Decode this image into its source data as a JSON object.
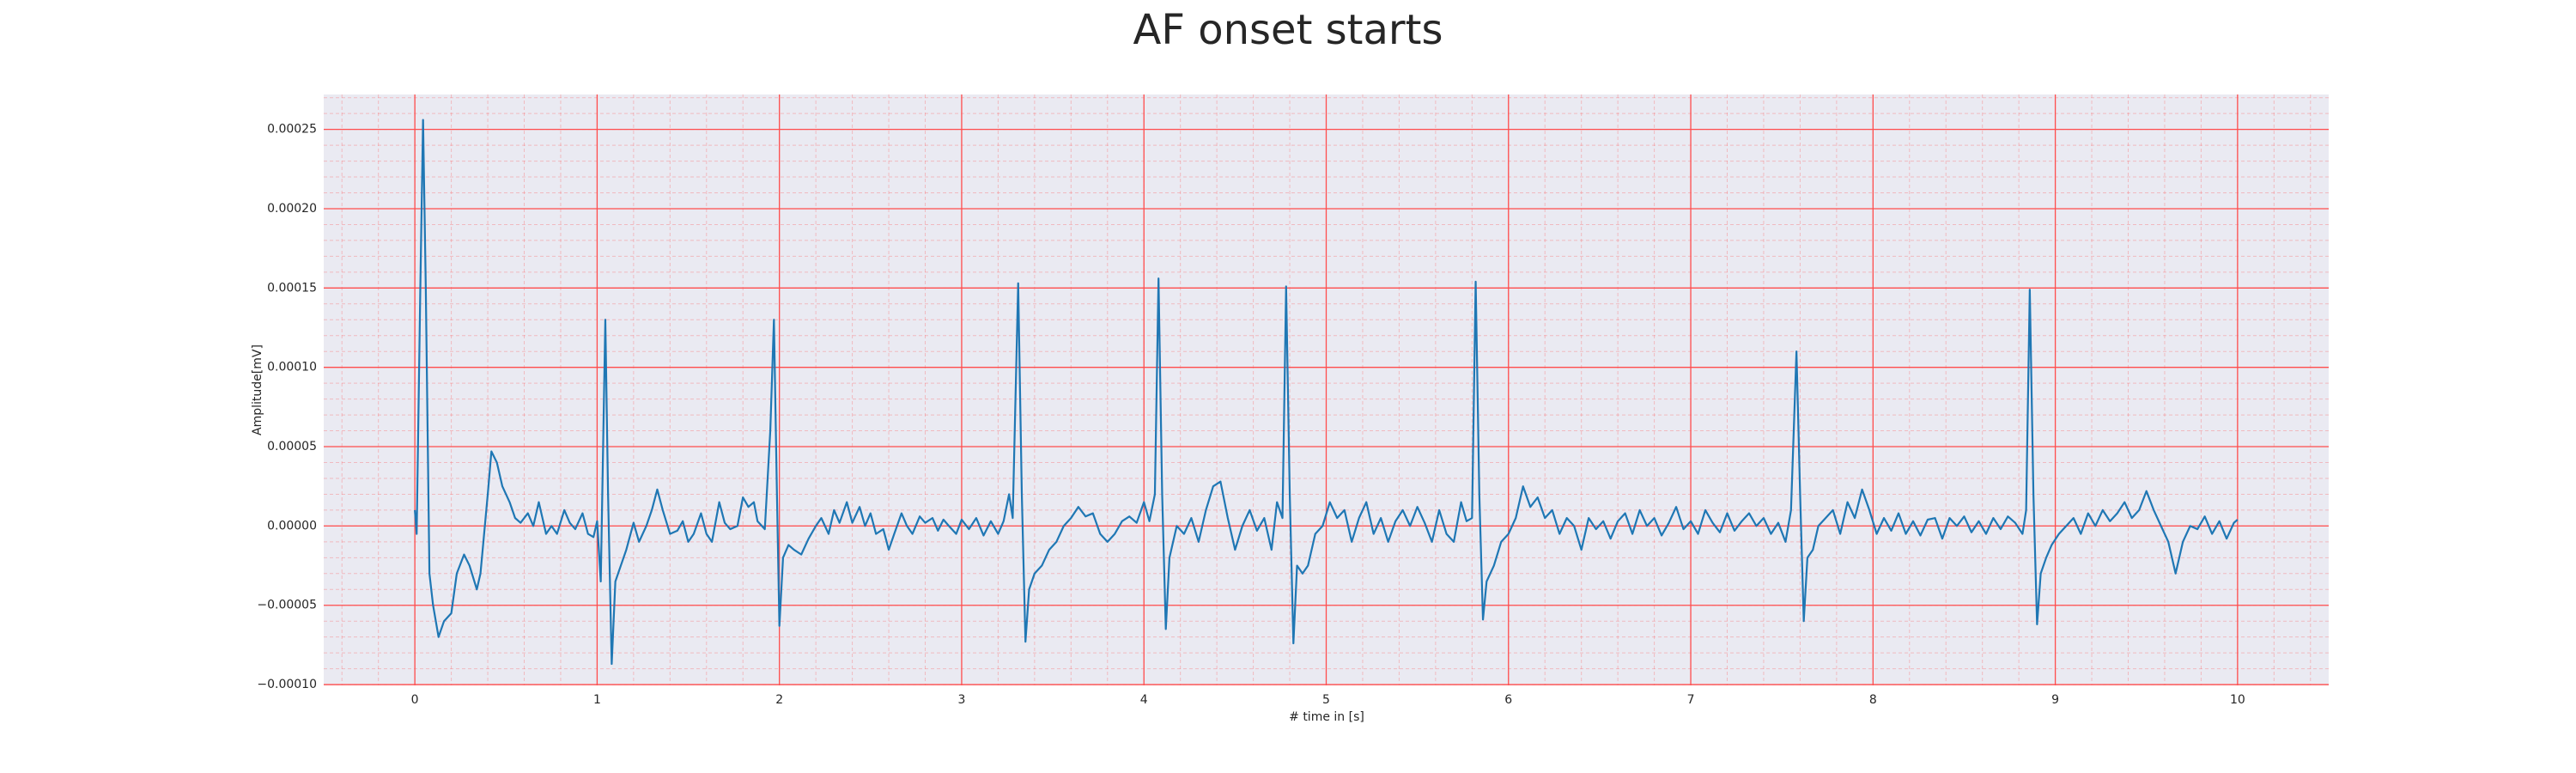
{
  "chart_data": {
    "type": "line",
    "title": "AF onset starts",
    "x_label": "# time in [s]",
    "y_label": "Amplitude[mV]",
    "xlim": [
      -0.5,
      10.5
    ],
    "ylim": [
      -0.0001005,
      0.000272
    ],
    "xticks": [
      0,
      1,
      2,
      3,
      4,
      5,
      6,
      7,
      8,
      9,
      10
    ],
    "yticks": [
      {
        "value": -0.0001,
        "label": "−0.00010"
      },
      {
        "value": -5e-05,
        "label": "−0.00005"
      },
      {
        "value": 0,
        "label": "0.00000"
      },
      {
        "value": 5e-05,
        "label": "0.00005"
      },
      {
        "value": 0.0001,
        "label": "0.00010"
      },
      {
        "value": 0.00015,
        "label": "0.00015"
      },
      {
        "value": 0.0002,
        "label": "0.00020"
      },
      {
        "value": 0.00025,
        "label": "0.00025"
      }
    ],
    "grid": true,
    "grid_color": "#ff4d4d",
    "x": [
      0,
      0.01,
      0.03,
      0.045,
      0.06,
      0.08,
      0.1,
      0.13,
      0.16,
      0.2,
      0.23,
      0.27,
      0.3,
      0.34,
      0.36,
      0.4,
      0.42,
      0.45,
      0.48,
      0.52,
      0.55,
      0.58,
      0.62,
      0.65,
      0.68,
      0.72,
      0.75,
      0.78,
      0.82,
      0.85,
      0.88,
      0.92,
      0.95,
      0.98,
      1.0,
      1.02,
      1.045,
      1.06,
      1.08,
      1.1,
      1.13,
      1.16,
      1.2,
      1.23,
      1.27,
      1.3,
      1.33,
      1.36,
      1.4,
      1.44,
      1.47,
      1.5,
      1.53,
      1.57,
      1.6,
      1.63,
      1.67,
      1.7,
      1.73,
      1.77,
      1.8,
      1.83,
      1.86,
      1.88,
      1.92,
      1.95,
      1.97,
      1.985,
      2.0,
      2.02,
      2.05,
      2.08,
      2.12,
      2.16,
      2.2,
      2.23,
      2.27,
      2.3,
      2.33,
      2.37,
      2.4,
      2.44,
      2.47,
      2.5,
      2.53,
      2.57,
      2.6,
      2.63,
      2.67,
      2.7,
      2.73,
      2.77,
      2.8,
      2.84,
      2.87,
      2.9,
      2.93,
      2.97,
      3.0,
      3.04,
      3.08,
      3.12,
      3.16,
      3.2,
      3.23,
      3.26,
      3.28,
      3.31,
      3.33,
      3.35,
      3.37,
      3.4,
      3.44,
      3.48,
      3.52,
      3.56,
      3.6,
      3.64,
      3.68,
      3.72,
      3.76,
      3.8,
      3.84,
      3.88,
      3.92,
      3.96,
      4.0,
      4.03,
      4.06,
      4.08,
      4.1,
      4.12,
      4.14,
      4.18,
      4.22,
      4.26,
      4.3,
      4.34,
      4.38,
      4.42,
      4.46,
      4.5,
      4.54,
      4.58,
      4.62,
      4.66,
      4.7,
      4.73,
      4.76,
      4.78,
      4.8,
      4.82,
      4.84,
      4.87,
      4.9,
      4.94,
      4.98,
      5.02,
      5.06,
      5.1,
      5.14,
      5.18,
      5.22,
      5.26,
      5.3,
      5.34,
      5.38,
      5.42,
      5.46,
      5.5,
      5.54,
      5.58,
      5.62,
      5.66,
      5.7,
      5.74,
      5.77,
      5.8,
      5.82,
      5.84,
      5.86,
      5.88,
      5.92,
      5.96,
      6.0,
      6.04,
      6.08,
      6.12,
      6.16,
      6.2,
      6.24,
      6.28,
      6.32,
      6.36,
      6.4,
      6.44,
      6.48,
      6.52,
      6.56,
      6.6,
      6.64,
      6.68,
      6.72,
      6.76,
      6.8,
      6.84,
      6.88,
      6.92,
      6.96,
      7.0,
      7.04,
      7.08,
      7.12,
      7.16,
      7.2,
      7.24,
      7.28,
      7.32,
      7.36,
      7.4,
      7.44,
      7.48,
      7.52,
      7.55,
      7.58,
      7.6,
      7.62,
      7.64,
      7.67,
      7.7,
      7.74,
      7.78,
      7.82,
      7.86,
      7.9,
      7.94,
      7.98,
      8.02,
      8.06,
      8.1,
      8.14,
      8.18,
      8.22,
      8.26,
      8.3,
      8.34,
      8.38,
      8.42,
      8.46,
      8.5,
      8.54,
      8.58,
      8.62,
      8.66,
      8.7,
      8.74,
      8.78,
      8.82,
      8.84,
      8.86,
      8.88,
      8.9,
      8.92,
      8.95,
      8.98,
      9.02,
      9.06,
      9.1,
      9.14,
      9.18,
      9.22,
      9.26,
      9.3,
      9.34,
      9.38,
      9.42,
      9.46,
      9.5,
      9.54,
      9.58,
      9.62,
      9.66,
      9.7,
      9.74,
      9.78,
      9.82,
      9.86,
      9.9,
      9.94,
      9.98,
      10.0
    ],
    "series": [
      {
        "color": "#1f77b4",
        "values": [
          1e-05,
          -5e-06,
          0.00015,
          0.000256,
          0.00015,
          -3e-05,
          -5e-05,
          -7e-05,
          -6e-05,
          -5.5e-05,
          -3e-05,
          -1.8e-05,
          -2.5e-05,
          -4e-05,
          -3e-05,
          2e-05,
          4.7e-05,
          4e-05,
          2.5e-05,
          1.5e-05,
          5e-06,
          2e-06,
          8e-06,
          0,
          1.5e-05,
          -5e-06,
          0,
          -5e-06,
          1e-05,
          2e-06,
          -2e-06,
          8e-06,
          -5e-06,
          -7e-06,
          3e-06,
          -3.5e-05,
          0.00013,
          2e-05,
          -8.7e-05,
          -3.5e-05,
          -2.5e-05,
          -1.5e-05,
          2e-06,
          -1e-05,
          0,
          1e-05,
          2.3e-05,
          1e-05,
          -5e-06,
          -3e-06,
          3e-06,
          -1e-05,
          -5e-06,
          8e-06,
          -5e-06,
          -1e-05,
          1.5e-05,
          2e-06,
          -2e-06,
          0,
          1.8e-05,
          1.2e-05,
          1.5e-05,
          3e-06,
          -2e-06,
          6e-05,
          0.00013,
          3e-05,
          -6.3e-05,
          -2e-05,
          -1.2e-05,
          -1.5e-05,
          -1.8e-05,
          -8e-06,
          0,
          5e-06,
          -5e-06,
          1e-05,
          2e-06,
          1.5e-05,
          2e-06,
          1.2e-05,
          0,
          8e-06,
          -5e-06,
          -2e-06,
          -1.5e-05,
          -5e-06,
          8e-06,
          0,
          -5e-06,
          6e-06,
          2e-06,
          5e-06,
          -3e-06,
          4e-06,
          0,
          -5e-06,
          4e-06,
          -2e-06,
          5e-06,
          -6e-06,
          3e-06,
          -5e-06,
          3e-06,
          2e-05,
          5e-06,
          0.000153,
          2e-05,
          -7.3e-05,
          -4e-05,
          -3e-05,
          -2.5e-05,
          -1.5e-05,
          -1e-05,
          0,
          5e-06,
          1.2e-05,
          6e-06,
          8e-06,
          -5e-06,
          -1e-05,
          -5e-06,
          3e-06,
          6e-06,
          2e-06,
          1.5e-05,
          3e-06,
          2e-05,
          0.000156,
          2e-05,
          -6.5e-05,
          -2e-05,
          0,
          -5e-06,
          5e-06,
          -1e-05,
          1e-05,
          2.5e-05,
          2.8e-05,
          5e-06,
          -1.5e-05,
          0,
          1e-05,
          -3e-06,
          5e-06,
          -1.5e-05,
          1.5e-05,
          5e-06,
          0.000151,
          2e-05,
          -7.4e-05,
          -2.5e-05,
          -3e-05,
          -2.5e-05,
          -5e-06,
          0,
          1.5e-05,
          5e-06,
          1e-05,
          -1e-05,
          5e-06,
          1.5e-05,
          -5e-06,
          5e-06,
          -1e-05,
          3e-06,
          1e-05,
          0,
          1.2e-05,
          2e-06,
          -1e-05,
          1e-05,
          -5e-06,
          -1e-05,
          1.5e-05,
          3e-06,
          5e-06,
          0.000154,
          2e-05,
          -5.9e-05,
          -3.5e-05,
          -2.5e-05,
          -1e-05,
          -5e-06,
          5e-06,
          2.5e-05,
          1.2e-05,
          1.8e-05,
          5e-06,
          1e-05,
          -5e-06,
          5e-06,
          0,
          -1.5e-05,
          5e-06,
          -2e-06,
          3e-06,
          -8e-06,
          3e-06,
          8e-06,
          -5e-06,
          1e-05,
          0,
          5e-06,
          -6e-06,
          2e-06,
          1.2e-05,
          -2e-06,
          3e-06,
          -5e-06,
          1e-05,
          2e-06,
          -4e-06,
          8e-06,
          -3e-06,
          3e-06,
          8e-06,
          0,
          5e-06,
          -5e-06,
          2e-06,
          -1e-05,
          1e-05,
          0.00011,
          2e-05,
          -6e-05,
          -2e-05,
          -1.5e-05,
          0,
          5e-06,
          1e-05,
          -5e-06,
          1.5e-05,
          5e-06,
          2.3e-05,
          1e-05,
          -5e-06,
          5e-06,
          -3e-06,
          8e-06,
          -5e-06,
          3e-06,
          -6e-06,
          4e-06,
          5e-06,
          -8e-06,
          5e-06,
          0,
          6e-06,
          -4e-06,
          3e-06,
          -5e-06,
          5e-06,
          -2e-06,
          6e-06,
          2e-06,
          -5e-06,
          1e-05,
          0.000149,
          2e-05,
          -6.2e-05,
          -3e-05,
          -2e-05,
          -1.2e-05,
          -5e-06,
          0,
          5e-06,
          -5e-06,
          8e-06,
          0,
          1e-05,
          3e-06,
          8e-06,
          1.5e-05,
          5e-06,
          1e-05,
          2.2e-05,
          1e-05,
          0,
          -1e-05,
          -3e-05,
          -1e-05,
          0,
          -2e-06,
          6e-06,
          -5e-06,
          3e-06,
          -8e-06,
          2e-06,
          4e-06
        ]
      }
    ]
  }
}
